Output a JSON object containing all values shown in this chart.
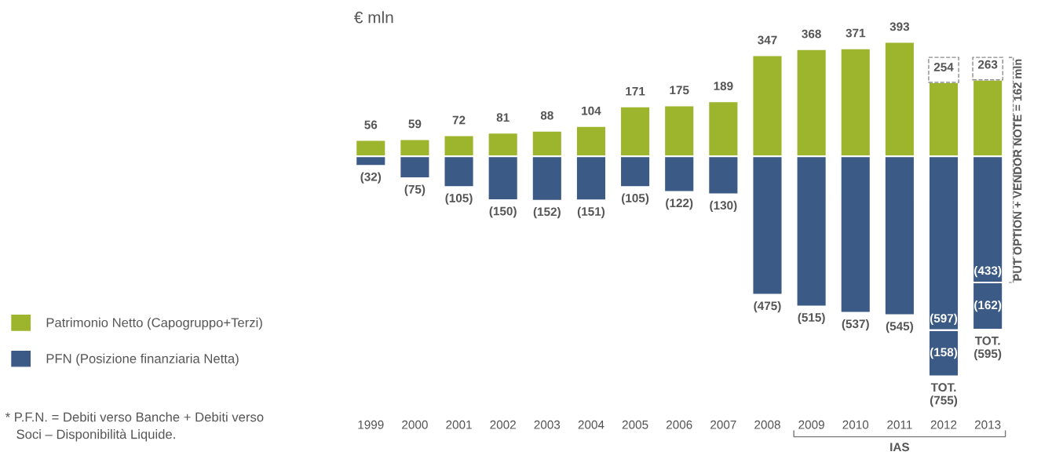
{
  "chart_data": {
    "type": "bar",
    "stacked": true,
    "ylabel": "€ mln",
    "legend": "left",
    "categories": [
      "1999",
      "2000",
      "2001",
      "2002",
      "2003",
      "2004",
      "2005",
      "2006",
      "2007",
      "2008",
      "2009",
      "2010",
      "2011",
      "2012",
      "2013"
    ],
    "series": [
      {
        "name": "Patrimonio Netto (Capogruppo+Terzi)",
        "color": "#9db52c",
        "values": [
          56,
          59,
          72,
          81,
          88,
          104,
          171,
          175,
          189,
          347,
          368,
          371,
          393,
          254,
          263
        ],
        "value_labels": [
          "56",
          "59",
          "72",
          "81",
          "88",
          "104",
          "171",
          "175",
          "189",
          "347",
          "368",
          "371",
          "393",
          "254",
          "263"
        ]
      },
      {
        "type": "bar",
        "line_style": "dashed",
        "color": "#8c8c8c",
        "values": [
          null,
          null,
          null,
          null,
          null,
          null,
          null,
          null,
          null,
          null,
          null,
          null,
          null,
          86,
          77
        ]
      },
      {
        "name": "PFN (Posizione finanziaria Netta)",
        "color": "#3b5a85",
        "values": [
          -32,
          -75,
          -105,
          -150,
          -152,
          -151,
          -105,
          -122,
          -130,
          -475,
          -515,
          -537,
          -545,
          -597,
          -433
        ],
        "value_labels": [
          "(32)",
          "(75)",
          "(105)",
          "(150)",
          "(152)",
          "(151)",
          "(105)",
          "(122)",
          "(130)",
          "(475)",
          "(515)",
          "(537)",
          "(545)",
          "(597)",
          "(433)"
        ]
      },
      {
        "color": "#3b5a85",
        "values": [
          null,
          null,
          null,
          null,
          null,
          null,
          null,
          null,
          null,
          null,
          null,
          null,
          null,
          -158,
          -162
        ],
        "value_labels": [
          null,
          null,
          null,
          null,
          null,
          null,
          null,
          null,
          null,
          null,
          null,
          null,
          null,
          "(158)",
          "(162)"
        ]
      }
    ],
    "annotations": [
      "PUT OPTION + VENDOR NOTE = 162 mln",
      "* P.F.N. = Debiti verso Banche + Debiti verso\n   Soci – Disponibilità Liquide.",
      {
        "text": "TOT.\n(755)",
        "x": "2012",
        "y": -755
      },
      {
        "text": "TOT.\n(595)",
        "x": "2013",
        "y": -595
      },
      "IAS"
    ]
  }
}
